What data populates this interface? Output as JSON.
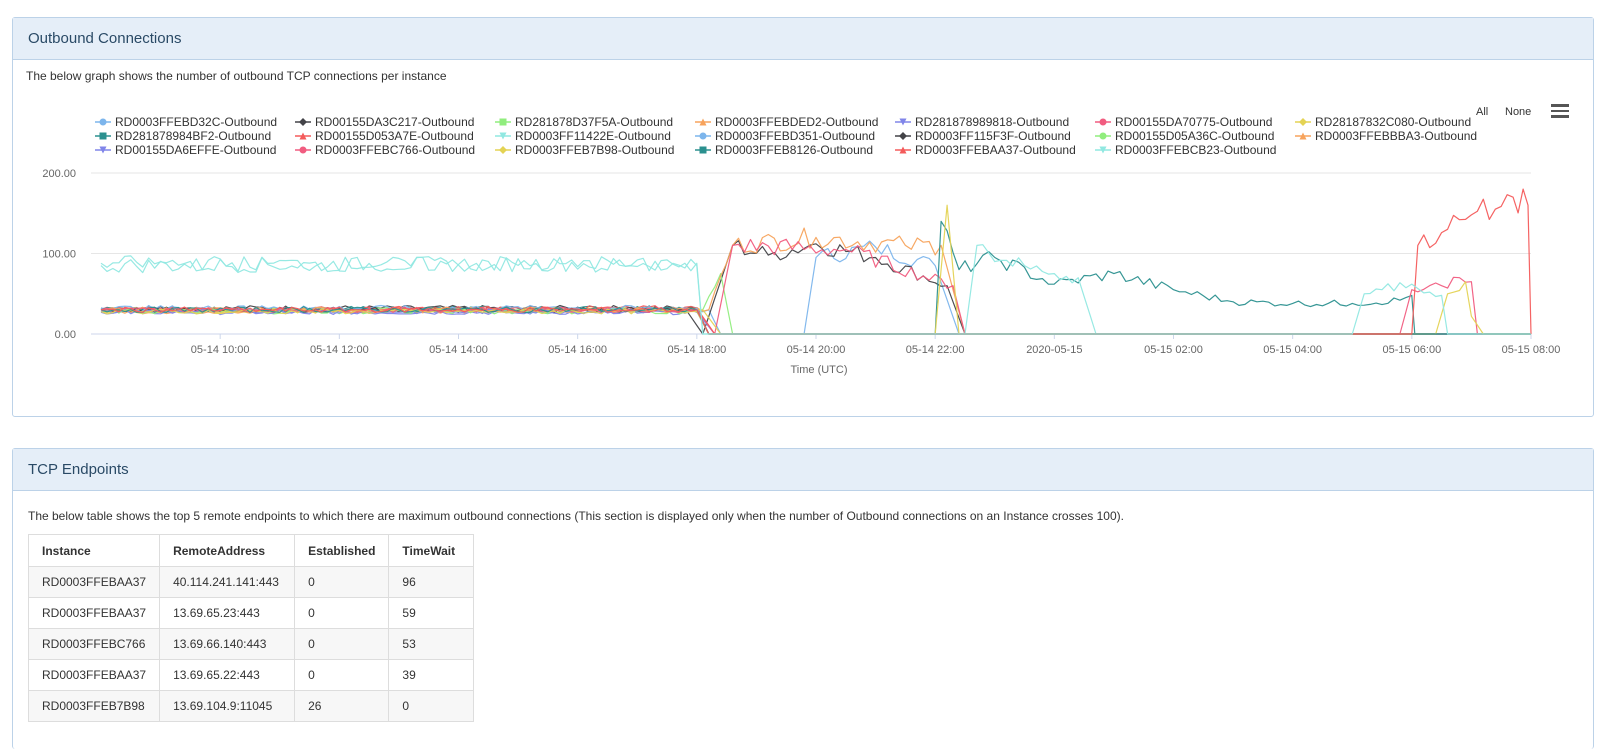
{
  "outbound": {
    "title": "Outbound Connections",
    "description": "The below graph shows the number of outbound TCP connections per instance",
    "toolbar": {
      "all": "All",
      "none": "None",
      "menu_icon": "hamburger-menu-icon"
    }
  },
  "tcp": {
    "title": "TCP Endpoints",
    "description": "The below table shows the top 5 remote endpoints to which there are maximum outbound connections (This section is displayed only when the number of Outbound connections on an Instance crosses 100).",
    "headers": [
      "Instance",
      "RemoteAddress",
      "Established",
      "TimeWait"
    ],
    "rows": [
      [
        "RD0003FFEBAA37",
        "40.114.241.141:443",
        "0",
        "96"
      ],
      [
        "RD0003FFEBAA37",
        "13.69.65.23:443",
        "0",
        "59"
      ],
      [
        "RD0003FFEBC766",
        "13.69.66.140:443",
        "0",
        "53"
      ],
      [
        "RD0003FFEBAA37",
        "13.69.65.22:443",
        "0",
        "39"
      ],
      [
        "RD0003FFEB7B98",
        "13.69.104.9:11045",
        "26",
        "0"
      ]
    ]
  },
  "chart_data": {
    "type": "line",
    "title": "",
    "xlabel": "Time (UTC)",
    "ylabel": "",
    "ylim": [
      0,
      200
    ],
    "xlim": [
      "2020-05-14 08:00",
      "2020-05-15 08:00"
    ],
    "grid": true,
    "legend_position": "top",
    "yticks": [
      "0.00",
      "100.00",
      "200.00"
    ],
    "xticks": [
      "05-14 10:00",
      "05-14 12:00",
      "05-14 14:00",
      "05-14 16:00",
      "05-14 18:00",
      "05-14 20:00",
      "05-14 22:00",
      "2020-05-15",
      "05-15 02:00",
      "05-15 04:00",
      "05-15 06:00",
      "05-15 08:00"
    ],
    "xtick_hours": [
      2,
      4,
      6,
      8,
      10,
      12,
      14,
      16,
      18,
      20,
      22,
      24
    ],
    "x_unit": "hours after 2020-05-14 08:00",
    "series": [
      {
        "name": "RD0003FFEBD32C-Outbound",
        "color": "#7cb5ec",
        "marker": "circle",
        "points": [
          [
            0,
            32
          ],
          [
            10.2,
            30
          ],
          [
            10.4,
            0
          ],
          [
            11.8,
            0
          ],
          [
            12,
            95
          ],
          [
            13,
            108
          ],
          [
            14,
            85
          ],
          [
            14.4,
            0
          ],
          [
            24,
            0
          ]
        ]
      },
      {
        "name": "RD00155DA3C217-Outbound",
        "color": "#434348",
        "marker": "diamond",
        "points": [
          [
            0,
            32
          ],
          [
            9.8,
            32
          ],
          [
            10.1,
            0
          ],
          [
            10.6,
            110
          ],
          [
            11.2,
            98
          ],
          [
            12,
            112
          ],
          [
            13,
            95
          ],
          [
            14.2,
            60
          ],
          [
            14.5,
            0
          ],
          [
            24,
            0
          ]
        ]
      },
      {
        "name": "RD281878D37F5A-Outbound",
        "color": "#90ed7d",
        "marker": "square",
        "points": [
          [
            0,
            30
          ],
          [
            10.1,
            30
          ],
          [
            10.4,
            75
          ],
          [
            10.6,
            0
          ],
          [
            24,
            0
          ]
        ]
      },
      {
        "name": "RD0003FFEBDED2-Outbound",
        "color": "#f7a35c",
        "marker": "triangle",
        "points": [
          [
            0,
            28
          ],
          [
            10.2,
            30
          ],
          [
            10.6,
            110
          ],
          [
            12,
            120
          ],
          [
            13.5,
            110
          ],
          [
            14.1,
            110
          ],
          [
            14.5,
            0
          ],
          [
            24,
            0
          ]
        ]
      },
      {
        "name": "RD281878989818-Outbound",
        "color": "#8085e9",
        "marker": "triangle-down",
        "points": [
          [
            0,
            27
          ],
          [
            10.0,
            27
          ],
          [
            10.3,
            0
          ],
          [
            24,
            0
          ]
        ]
      },
      {
        "name": "RD00155DA70775-Outbound",
        "color": "#f15c80",
        "marker": "circle",
        "points": [
          [
            0,
            30
          ],
          [
            10.0,
            30
          ],
          [
            10.3,
            0
          ],
          [
            10.6,
            110
          ],
          [
            12.5,
            105
          ],
          [
            14.3,
            60
          ],
          [
            14.5,
            0
          ],
          [
            24,
            0
          ]
        ]
      },
      {
        "name": "RD28187832C080-Outbound",
        "color": "#e4d354",
        "marker": "diamond",
        "points": [
          [
            0,
            28
          ],
          [
            10.1,
            30
          ],
          [
            10.4,
            0
          ],
          [
            24,
            0
          ]
        ]
      },
      {
        "name": "RD281878984BF2-Outbound",
        "color": "#2b908f",
        "marker": "square",
        "points": [
          [
            0,
            30
          ],
          [
            10.0,
            32
          ],
          [
            10.2,
            0
          ],
          [
            14.0,
            0
          ],
          [
            14.1,
            140
          ],
          [
            14.4,
            80
          ],
          [
            15,
            95
          ],
          [
            16,
            62
          ],
          [
            17,
            75
          ],
          [
            18,
            55
          ],
          [
            19,
            40
          ],
          [
            20,
            38
          ],
          [
            21,
            38
          ],
          [
            21.8,
            42
          ],
          [
            22.0,
            48
          ],
          [
            22.05,
            0
          ],
          [
            24,
            0
          ]
        ]
      },
      {
        "name": "RD00155D053A7E-Outbound",
        "color": "#f45b5b",
        "marker": "triangle",
        "points": [
          [
            0,
            30
          ],
          [
            10.0,
            32
          ],
          [
            10.3,
            0
          ],
          [
            24,
            0
          ]
        ]
      },
      {
        "name": "RD0003FF11422E-Outbound",
        "color": "#91e8e1",
        "marker": "triangle-down",
        "points": [
          [
            0,
            85
          ],
          [
            9.8,
            88
          ],
          [
            10.0,
            88
          ],
          [
            10.1,
            0
          ],
          [
            14.5,
            0
          ],
          [
            14.7,
            110
          ],
          [
            15,
            90
          ],
          [
            15.5,
            85
          ],
          [
            16,
            75
          ],
          [
            16.4,
            70
          ],
          [
            16.7,
            0
          ],
          [
            24,
            0
          ]
        ]
      },
      {
        "name": "RD0003FFEBD351-Outbound",
        "color": "#7cb5ec",
        "marker": "circle",
        "points": [
          [
            0,
            32
          ],
          [
            10.0,
            32
          ],
          [
            10.2,
            0
          ],
          [
            24,
            0
          ]
        ]
      },
      {
        "name": "RD0003FF115F3F-Outbound",
        "color": "#434348",
        "marker": "diamond",
        "points": [
          [
            0,
            30
          ],
          [
            10.0,
            30
          ],
          [
            10.2,
            0
          ],
          [
            24,
            0
          ]
        ]
      },
      {
        "name": "RD00155D05A36C-Outbound",
        "color": "#90ed7d",
        "marker": "circle",
        "points": [
          [
            0,
            28
          ],
          [
            10.0,
            28
          ],
          [
            10.2,
            0
          ],
          [
            24,
            0
          ]
        ]
      },
      {
        "name": "RD0003FFEBBBA3-Outbound",
        "color": "#f7a35c",
        "marker": "triangle",
        "points": [
          [
            0,
            30
          ],
          [
            10.0,
            30
          ],
          [
            10.2,
            0
          ],
          [
            24,
            0
          ]
        ]
      },
      {
        "name": "RD00155DA6EFFE-Outbound",
        "color": "#8085e9",
        "marker": "triangle-down",
        "points": [
          [
            0,
            28
          ],
          [
            10.0,
            28
          ],
          [
            10.2,
            0
          ],
          [
            24,
            0
          ]
        ]
      },
      {
        "name": "RD0003FFEBC766-Outbound",
        "color": "#f15c80",
        "marker": "circle",
        "points": [
          [
            0,
            30
          ],
          [
            10.0,
            30
          ],
          [
            10.2,
            0
          ],
          [
            21.8,
            0
          ],
          [
            22.0,
            55
          ],
          [
            22.5,
            60
          ],
          [
            22.8,
            70
          ],
          [
            23.0,
            65
          ],
          [
            23.1,
            0
          ],
          [
            24,
            0
          ]
        ]
      },
      {
        "name": "RD0003FFEB7B98-Outbound",
        "color": "#e4d354",
        "marker": "diamond",
        "points": [
          [
            0,
            28
          ],
          [
            10.0,
            28
          ],
          [
            10.2,
            0
          ],
          [
            14.0,
            0
          ],
          [
            14.2,
            160
          ],
          [
            14.4,
            0
          ],
          [
            22.4,
            0
          ],
          [
            22.6,
            50
          ],
          [
            22.9,
            65
          ],
          [
            23.0,
            22
          ],
          [
            23.2,
            0
          ],
          [
            24,
            0
          ]
        ]
      },
      {
        "name": "RD0003FFEB8126-Outbound",
        "color": "#2b908f",
        "marker": "square",
        "points": [
          [
            0,
            30
          ],
          [
            10.0,
            30
          ],
          [
            10.2,
            0
          ],
          [
            24,
            0
          ]
        ]
      },
      {
        "name": "RD0003FFEBAA37-Outbound",
        "color": "#f45b5b",
        "marker": "triangle",
        "points": [
          [
            0,
            30
          ],
          [
            10.0,
            30
          ],
          [
            10.2,
            0
          ],
          [
            14.5,
            0
          ],
          [
            22.0,
            0
          ],
          [
            22.1,
            110
          ],
          [
            22.6,
            130
          ],
          [
            23.0,
            148
          ],
          [
            23.4,
            155
          ],
          [
            23.7,
            170
          ],
          [
            23.95,
            160
          ],
          [
            24,
            0
          ]
        ]
      },
      {
        "name": "RD0003FFEBCB23-Outbound",
        "color": "#91e8e1",
        "marker": "triangle-down",
        "points": [
          [
            0,
            88
          ],
          [
            10.0,
            85
          ],
          [
            10.1,
            0
          ],
          [
            14.5,
            0
          ],
          [
            21.0,
            0
          ],
          [
            21.2,
            50
          ],
          [
            21.5,
            55
          ],
          [
            22.0,
            62
          ],
          [
            22.3,
            52
          ],
          [
            22.5,
            48
          ],
          [
            22.6,
            0
          ],
          [
            24,
            0
          ]
        ]
      }
    ]
  }
}
